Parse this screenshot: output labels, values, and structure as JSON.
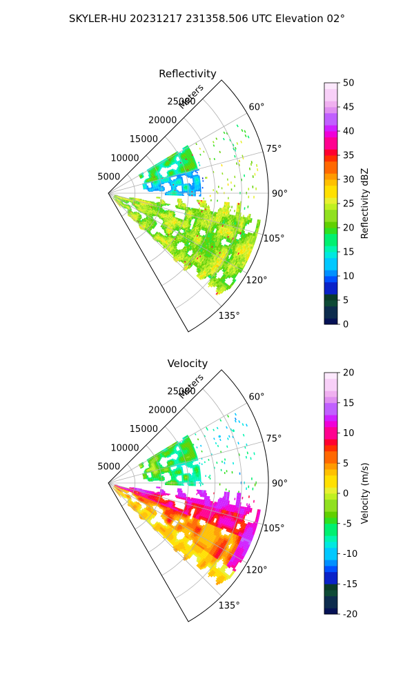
{
  "figure_title": "SKYLER-HU  20231217  231358.506 UTC Elevation 02°",
  "chart_data": [
    {
      "type": "heatmap",
      "title": "Reflectivity",
      "range_label": "Meters",
      "range_ticks": [
        5000,
        10000,
        15000,
        20000,
        25000
      ],
      "range_tick_labels": [
        "5000",
        "10000",
        "15000",
        "20000",
        "25000"
      ],
      "range_max": 30000,
      "azimuth_range_deg": [
        45,
        150
      ],
      "azimuth_ticks": [
        60,
        75,
        90,
        105,
        120,
        135
      ],
      "azimuth_tick_labels": [
        "60°",
        "75°",
        "90°",
        "105°",
        "120°",
        "135°"
      ],
      "grid": true,
      "colorbar": {
        "label": "Reflectivity dBZ",
        "range": [
          0,
          50
        ],
        "ticks": [
          0,
          5,
          10,
          15,
          20,
          25,
          30,
          35,
          40,
          45,
          50
        ],
        "tick_labels": [
          "0",
          "5",
          "10",
          "15",
          "20",
          "25",
          "30",
          "35",
          "40",
          "45",
          "50"
        ],
        "colormap": "pyart_HomeyerRainbow"
      }
    },
    {
      "type": "heatmap",
      "title": "Velocity",
      "range_label": "Meters",
      "range_ticks": [
        5000,
        10000,
        15000,
        20000,
        25000
      ],
      "range_tick_labels": [
        "5000",
        "10000",
        "15000",
        "20000",
        "25000"
      ],
      "range_max": 30000,
      "azimuth_range_deg": [
        45,
        150
      ],
      "azimuth_ticks": [
        60,
        75,
        90,
        105,
        120,
        135
      ],
      "azimuth_tick_labels": [
        "60°",
        "75°",
        "90°",
        "105°",
        "120°",
        "135°"
      ],
      "grid": true,
      "colorbar": {
        "label": "Velocity (m/s)",
        "range": [
          -20,
          20
        ],
        "ticks": [
          -20,
          -15,
          -10,
          -5,
          0,
          5,
          10,
          15,
          20
        ],
        "tick_labels": [
          "-20",
          "-15",
          "-10",
          "-5",
          "0",
          "5",
          "10",
          "15",
          "20"
        ],
        "colormap": "pyart_HomeyerRainbow"
      }
    }
  ]
}
